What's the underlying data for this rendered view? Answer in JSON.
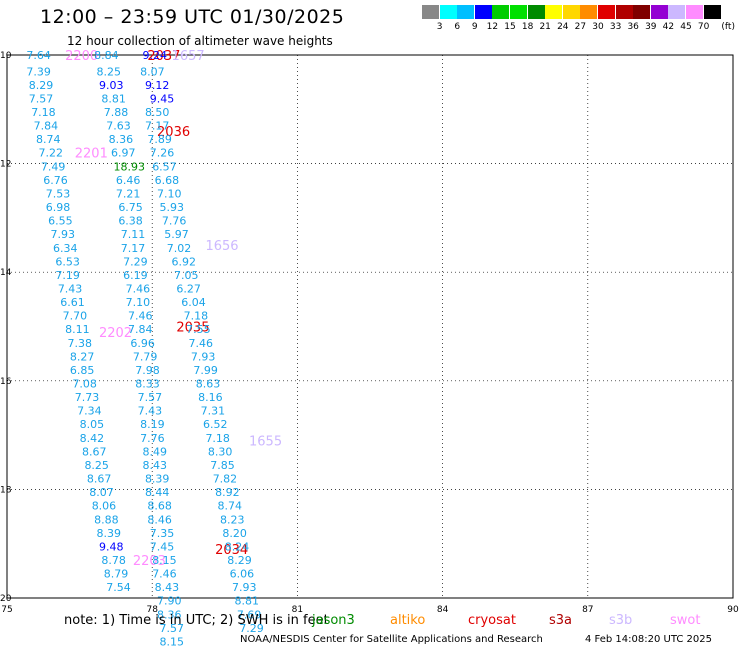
{
  "title": "12:00 – 23:59 UTC 01/30/2025",
  "subtitle": "12 hour collection of altimeter wave heights",
  "legend": {
    "unit": "(ft)",
    "ticks": [
      "3",
      "6",
      "9",
      "12",
      "15",
      "18",
      "21",
      "24",
      "27",
      "30",
      "33",
      "36",
      "39",
      "42",
      "45",
      "70"
    ],
    "colors": [
      "#888888",
      "#00ffff",
      "#00bfff",
      "#0000ff",
      "#00cd00",
      "#00e000",
      "#008b00",
      "#ffff00",
      "#ffd700",
      "#ff8c00",
      "#e00000",
      "#b00000",
      "#800000",
      "#9400d3",
      "#ccb8ff",
      "#ff8cff",
      "#000000"
    ]
  },
  "note": "note: 1) Time is in UTC; 2) SWH is in feet",
  "satellites": [
    {
      "name": "jason3",
      "color": "#008b00"
    },
    {
      "name": "altiko",
      "color": "#ff8c00"
    },
    {
      "name": "cryosat",
      "color": "#e00000"
    },
    {
      "name": "s3a",
      "color": "#b00000"
    },
    {
      "name": "s3b",
      "color": "#ccb8ff"
    },
    {
      "name": "swot",
      "color": "#ff8cff"
    }
  ],
  "credit": "NOAA/NESDIS Center for Satellite Applications and Research",
  "timestamp": "4 Feb 14:08:20 UTC 2025",
  "chart_data": {
    "type": "scatter",
    "title": "12:00 – 23:59 UTC 01/30/2025",
    "xlim": [
      75,
      90
    ],
    "ylim": [
      -10,
      -20
    ],
    "xticks": [
      75,
      78,
      81,
      84,
      87,
      90
    ],
    "yticks": [
      -10,
      -12,
      -14,
      -16,
      -18,
      -20
    ],
    "xtick_labels": [
      "75",
      "78",
      "81",
      "84",
      "87",
      "90"
    ],
    "ytick_labels": [
      "10",
      "12",
      "14",
      "16",
      "18",
      "20"
    ],
    "grid": true,
    "tracks": [
      {
        "sat": "swot",
        "color": "#ff8cff",
        "labels": [
          {
            "text": "2200",
            "x": 76.2,
            "y": -10.0
          },
          {
            "text": "2201",
            "x": 76.4,
            "y": -11.8
          },
          {
            "text": "2202",
            "x": 76.9,
            "y": -15.1
          },
          {
            "text": "2203",
            "x": 77.6,
            "y": -19.3
          }
        ],
        "points": [
          {
            "x": 75.4,
            "y": -10.0,
            "v": "7.64"
          },
          {
            "x": 75.4,
            "y": -10.3,
            "v": "7.39"
          },
          {
            "x": 75.45,
            "y": -10.55,
            "v": "8.29"
          },
          {
            "x": 75.45,
            "y": -10.8,
            "v": "7.57"
          },
          {
            "x": 75.5,
            "y": -11.05,
            "v": "7.18"
          },
          {
            "x": 75.55,
            "y": -11.3,
            "v": "7.84"
          },
          {
            "x": 75.6,
            "y": -11.55,
            "v": "8.74"
          },
          {
            "x": 75.65,
            "y": -11.8,
            "v": "7.22"
          },
          {
            "x": 75.7,
            "y": -12.05,
            "v": "7.49"
          },
          {
            "x": 75.75,
            "y": -12.3,
            "v": "6.76"
          },
          {
            "x": 75.8,
            "y": -12.55,
            "v": "7.53"
          },
          {
            "x": 75.8,
            "y": -12.8,
            "v": "6.98"
          },
          {
            "x": 75.85,
            "y": -13.05,
            "v": "6.55"
          },
          {
            "x": 75.9,
            "y": -13.3,
            "v": "7.93"
          },
          {
            "x": 75.95,
            "y": -13.55,
            "v": "6.34"
          },
          {
            "x": 76.0,
            "y": -13.8,
            "v": "6.53"
          },
          {
            "x": 76.0,
            "y": -14.05,
            "v": "7.19"
          },
          {
            "x": 76.05,
            "y": -14.3,
            "v": "7.43"
          },
          {
            "x": 76.1,
            "y": -14.55,
            "v": "6.61"
          },
          {
            "x": 76.15,
            "y": -14.8,
            "v": "7.70"
          },
          {
            "x": 76.2,
            "y": -15.05,
            "v": "8.11"
          },
          {
            "x": 76.25,
            "y": -15.3,
            "v": "7.38"
          },
          {
            "x": 76.3,
            "y": -15.55,
            "v": "8.27"
          },
          {
            "x": 76.3,
            "y": -15.8,
            "v": "6.85"
          },
          {
            "x": 76.35,
            "y": -16.05,
            "v": "7.08"
          },
          {
            "x": 76.4,
            "y": -16.3,
            "v": "7.73"
          },
          {
            "x": 76.45,
            "y": -16.55,
            "v": "7.34"
          },
          {
            "x": 76.5,
            "y": -16.8,
            "v": "8.05"
          },
          {
            "x": 76.5,
            "y": -17.05,
            "v": "8.42"
          },
          {
            "x": 76.55,
            "y": -17.3,
            "v": "8.67"
          },
          {
            "x": 76.6,
            "y": -17.55,
            "v": "8.25"
          },
          {
            "x": 76.65,
            "y": -17.8,
            "v": "8.67"
          },
          {
            "x": 76.7,
            "y": -18.05,
            "v": "8.07"
          },
          {
            "x": 76.75,
            "y": -18.3,
            "v": "8.06"
          },
          {
            "x": 76.8,
            "y": -18.55,
            "v": "8.88"
          },
          {
            "x": 76.85,
            "y": -18.8,
            "v": "8.39"
          },
          {
            "x": 76.9,
            "y": -19.05,
            "v": "9.48",
            "c": "#0000ff"
          },
          {
            "x": 76.95,
            "y": -19.3,
            "v": "8.78"
          },
          {
            "x": 77.0,
            "y": -19.55,
            "v": "8.79"
          },
          {
            "x": 77.05,
            "y": -19.8,
            "v": "7.54"
          }
        ]
      },
      {
        "sat": "swot",
        "color": "#ff8cff",
        "labels": [],
        "points": [
          {
            "x": 76.8,
            "y": -10.0,
            "v": "8.84"
          },
          {
            "x": 76.85,
            "y": -10.3,
            "v": "8.25"
          },
          {
            "x": 76.9,
            "y": -10.55,
            "v": "9.03",
            "c": "#0000ff"
          },
          {
            "x": 76.95,
            "y": -10.8,
            "v": "8.81"
          },
          {
            "x": 77.0,
            "y": -11.05,
            "v": "7.88"
          },
          {
            "x": 77.05,
            "y": -11.3,
            "v": "7.63"
          },
          {
            "x": 77.1,
            "y": -11.55,
            "v": "8.36"
          },
          {
            "x": 77.15,
            "y": -11.8,
            "v": "6.97"
          },
          {
            "x": 77.2,
            "y": -12.05,
            "v": "18.93",
            "c": "#008b00"
          },
          {
            "x": 77.25,
            "y": -12.3,
            "v": "6.46"
          },
          {
            "x": 77.25,
            "y": -12.55,
            "v": "7.21"
          },
          {
            "x": 77.3,
            "y": -12.8,
            "v": "6.75"
          },
          {
            "x": 77.3,
            "y": -13.05,
            "v": "6.38"
          },
          {
            "x": 77.35,
            "y": -13.3,
            "v": "7.11"
          },
          {
            "x": 77.35,
            "y": -13.55,
            "v": "7.17"
          },
          {
            "x": 77.4,
            "y": -13.8,
            "v": "7.29"
          },
          {
            "x": 77.4,
            "y": -14.05,
            "v": "6.19"
          },
          {
            "x": 77.45,
            "y": -14.3,
            "v": "7.46"
          },
          {
            "x": 77.45,
            "y": -14.55,
            "v": "7.10"
          },
          {
            "x": 77.5,
            "y": -14.8,
            "v": "7.46"
          },
          {
            "x": 77.5,
            "y": -15.05,
            "v": "7.84"
          },
          {
            "x": 77.55,
            "y": -15.3,
            "v": "6.96"
          },
          {
            "x": 77.6,
            "y": -15.55,
            "v": "7.79"
          },
          {
            "x": 77.65,
            "y": -15.8,
            "v": "7.98"
          },
          {
            "x": 77.65,
            "y": -16.05,
            "v": "8.33"
          },
          {
            "x": 77.7,
            "y": -16.3,
            "v": "7.57"
          },
          {
            "x": 77.7,
            "y": -16.55,
            "v": "7.43"
          },
          {
            "x": 77.75,
            "y": -16.8,
            "v": "8.19"
          },
          {
            "x": 77.75,
            "y": -17.05,
            "v": "7.76"
          },
          {
            "x": 77.8,
            "y": -17.3,
            "v": "8.49"
          },
          {
            "x": 77.8,
            "y": -17.55,
            "v": "8.43"
          },
          {
            "x": 77.85,
            "y": -17.8,
            "v": "8.39"
          },
          {
            "x": 77.85,
            "y": -18.05,
            "v": "8.44"
          },
          {
            "x": 77.9,
            "y": -18.3,
            "v": "8.68"
          },
          {
            "x": 77.9,
            "y": -18.55,
            "v": "8.46"
          },
          {
            "x": 77.95,
            "y": -18.8,
            "v": "7.35"
          },
          {
            "x": 77.95,
            "y": -19.05,
            "v": "7.45"
          },
          {
            "x": 78.0,
            "y": -19.3,
            "v": "8.15"
          },
          {
            "x": 78.0,
            "y": -19.55,
            "v": "7.46"
          },
          {
            "x": 78.05,
            "y": -19.8,
            "v": "8.43"
          },
          {
            "x": 78.1,
            "y": -20.05,
            "v": "7.90"
          },
          {
            "x": 78.1,
            "y": -20.3,
            "v": "8.36"
          },
          {
            "x": 78.15,
            "y": -20.55,
            "v": "7.57"
          },
          {
            "x": 78.15,
            "y": -20.8,
            "v": "8.15"
          }
        ]
      },
      {
        "sat": "cryosat",
        "color": "#e00000",
        "labels": [
          {
            "text": "2037",
            "x": 77.9,
            "y": -10.0
          },
          {
            "text": "2036",
            "x": 78.1,
            "y": -11.4
          },
          {
            "text": "2035",
            "x": 78.5,
            "y": -15.0
          },
          {
            "text": "2034",
            "x": 79.3,
            "y": -19.1
          }
        ],
        "points": []
      },
      {
        "sat": "s3b",
        "color": "#ccb8ff",
        "labels": [
          {
            "text": "1657",
            "x": 78.4,
            "y": -10.0
          },
          {
            "text": "1656",
            "x": 79.1,
            "y": -13.5
          },
          {
            "text": "1655",
            "x": 80.0,
            "y": -17.1
          }
        ],
        "points": [
          {
            "x": 77.8,
            "y": -10.0,
            "v": "9.24",
            "c": "#0000ff"
          },
          {
            "x": 77.75,
            "y": -10.3,
            "v": "8.07"
          },
          {
            "x": 77.85,
            "y": -10.55,
            "v": "9.12",
            "c": "#0000ff"
          },
          {
            "x": 77.95,
            "y": -10.8,
            "v": "9.45",
            "c": "#0000ff"
          },
          {
            "x": 77.85,
            "y": -11.05,
            "v": "8.50"
          },
          {
            "x": 77.85,
            "y": -11.3,
            "v": "7.17"
          },
          {
            "x": 77.9,
            "y": -11.55,
            "v": "7.89"
          },
          {
            "x": 77.95,
            "y": -11.8,
            "v": "7.26"
          },
          {
            "x": 78.0,
            "y": -12.05,
            "v": "6.57"
          },
          {
            "x": 78.05,
            "y": -12.3,
            "v": "6.68"
          },
          {
            "x": 78.1,
            "y": -12.55,
            "v": "7.10"
          },
          {
            "x": 78.15,
            "y": -12.8,
            "v": "5.93"
          },
          {
            "x": 78.2,
            "y": -13.05,
            "v": "7.76"
          },
          {
            "x": 78.25,
            "y": -13.3,
            "v": "5.97"
          },
          {
            "x": 78.3,
            "y": -13.55,
            "v": "7.02"
          },
          {
            "x": 78.4,
            "y": -13.8,
            "v": "6.92"
          },
          {
            "x": 78.45,
            "y": -14.05,
            "v": "7.05"
          },
          {
            "x": 78.5,
            "y": -14.3,
            "v": "6.27"
          },
          {
            "x": 78.6,
            "y": -14.55,
            "v": "6.04"
          },
          {
            "x": 78.65,
            "y": -14.8,
            "v": "7.18"
          },
          {
            "x": 78.7,
            "y": -15.05,
            "v": "7.55"
          },
          {
            "x": 78.75,
            "y": -15.3,
            "v": "7.46"
          },
          {
            "x": 78.8,
            "y": -15.55,
            "v": "7.93"
          },
          {
            "x": 78.85,
            "y": -15.8,
            "v": "7.99"
          },
          {
            "x": 78.9,
            "y": -16.05,
            "v": "8.63"
          },
          {
            "x": 78.95,
            "y": -16.3,
            "v": "8.16"
          },
          {
            "x": 79.0,
            "y": -16.55,
            "v": "7.31"
          },
          {
            "x": 79.05,
            "y": -16.8,
            "v": "6.52"
          },
          {
            "x": 79.1,
            "y": -17.05,
            "v": "7.18"
          },
          {
            "x": 79.15,
            "y": -17.3,
            "v": "8.30"
          },
          {
            "x": 79.2,
            "y": -17.55,
            "v": "7.85"
          },
          {
            "x": 79.25,
            "y": -17.8,
            "v": "7.82"
          },
          {
            "x": 79.3,
            "y": -18.05,
            "v": "8.92"
          },
          {
            "x": 79.35,
            "y": -18.3,
            "v": "8.74"
          },
          {
            "x": 79.4,
            "y": -18.55,
            "v": "8.23"
          },
          {
            "x": 79.45,
            "y": -18.8,
            "v": "8.20"
          },
          {
            "x": 79.5,
            "y": -19.05,
            "v": "8.24"
          },
          {
            "x": 79.55,
            "y": -19.3,
            "v": "8.29"
          },
          {
            "x": 79.6,
            "y": -19.55,
            "v": "6.06"
          },
          {
            "x": 79.65,
            "y": -19.8,
            "v": "7.93"
          },
          {
            "x": 79.7,
            "y": -20.05,
            "v": "8.81"
          },
          {
            "x": 79.75,
            "y": -20.3,
            "v": "7.69"
          },
          {
            "x": 79.8,
            "y": -20.55,
            "v": "7.29"
          }
        ]
      }
    ]
  }
}
